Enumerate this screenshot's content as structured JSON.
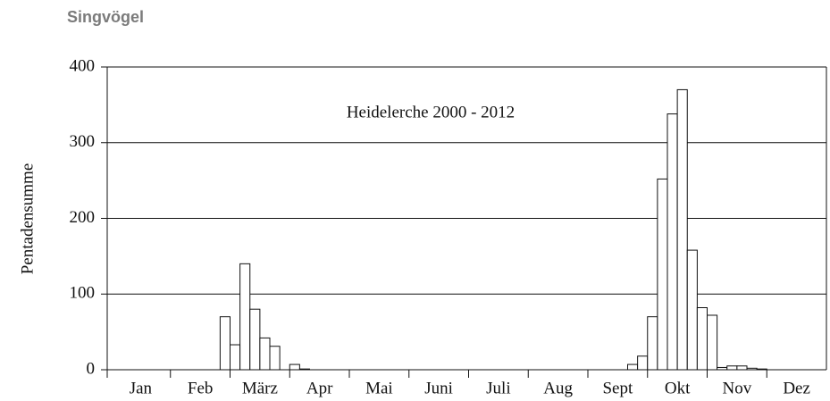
{
  "header": {
    "title": "Singvögel"
  },
  "chart_data": {
    "type": "bar",
    "annotation": "Heidelerche 2000 - 2012",
    "ylabel": "Pentadensumme",
    "x": [
      1,
      2,
      3,
      4,
      5,
      6,
      7,
      8,
      9,
      10,
      11,
      12,
      13,
      14,
      15,
      16,
      17,
      18,
      19,
      20,
      21,
      22,
      23,
      24,
      25,
      26,
      27,
      28,
      29,
      30,
      31,
      32,
      33,
      34,
      35,
      36,
      37,
      38,
      39,
      40,
      41,
      42,
      43,
      44,
      45,
      46,
      47,
      48,
      49,
      50,
      51,
      52,
      53,
      54,
      55,
      56,
      57,
      58,
      59,
      60,
      61,
      62,
      63,
      64,
      65,
      66,
      67,
      68,
      69,
      70,
      71,
      72
    ],
    "values": [
      0,
      0,
      0,
      0,
      0,
      0,
      0,
      0,
      0,
      0,
      0,
      70,
      33,
      140,
      80,
      42,
      31,
      0,
      7,
      1,
      0,
      0,
      0,
      0,
      0,
      0,
      0,
      0,
      0,
      0,
      0,
      0,
      0,
      0,
      0,
      0,
      0,
      0,
      0,
      0,
      0,
      0,
      0,
      0,
      0,
      0,
      0,
      0,
      0,
      0,
      0,
      0,
      7,
      18,
      70,
      252,
      338,
      370,
      158,
      82,
      72,
      3,
      5,
      5,
      2,
      1,
      0,
      0,
      0,
      0,
      0,
      0
    ],
    "color": "#ffffff",
    "xlim": [
      0.5,
      72.5
    ],
    "xticks": [
      {
        "value": 3.5,
        "label": "Jan"
      },
      {
        "value": 9.5,
        "label": "Feb"
      },
      {
        "value": 15.5,
        "label": "März"
      },
      {
        "value": 21.5,
        "label": "Apr"
      },
      {
        "value": 27.5,
        "label": "Mai"
      },
      {
        "value": 33.5,
        "label": "Juni"
      },
      {
        "value": 39.5,
        "label": "Juli"
      },
      {
        "value": 45.5,
        "label": "Aug"
      },
      {
        "value": 51.5,
        "label": "Sept"
      },
      {
        "value": 57.5,
        "label": "Okt"
      },
      {
        "value": 63.5,
        "label": "Nov"
      },
      {
        "value": 69.5,
        "label": "Dez"
      }
    ],
    "ylim": [
      0,
      400
    ],
    "yticks": [
      0,
      100,
      200,
      300,
      400
    ],
    "grid": true
  }
}
